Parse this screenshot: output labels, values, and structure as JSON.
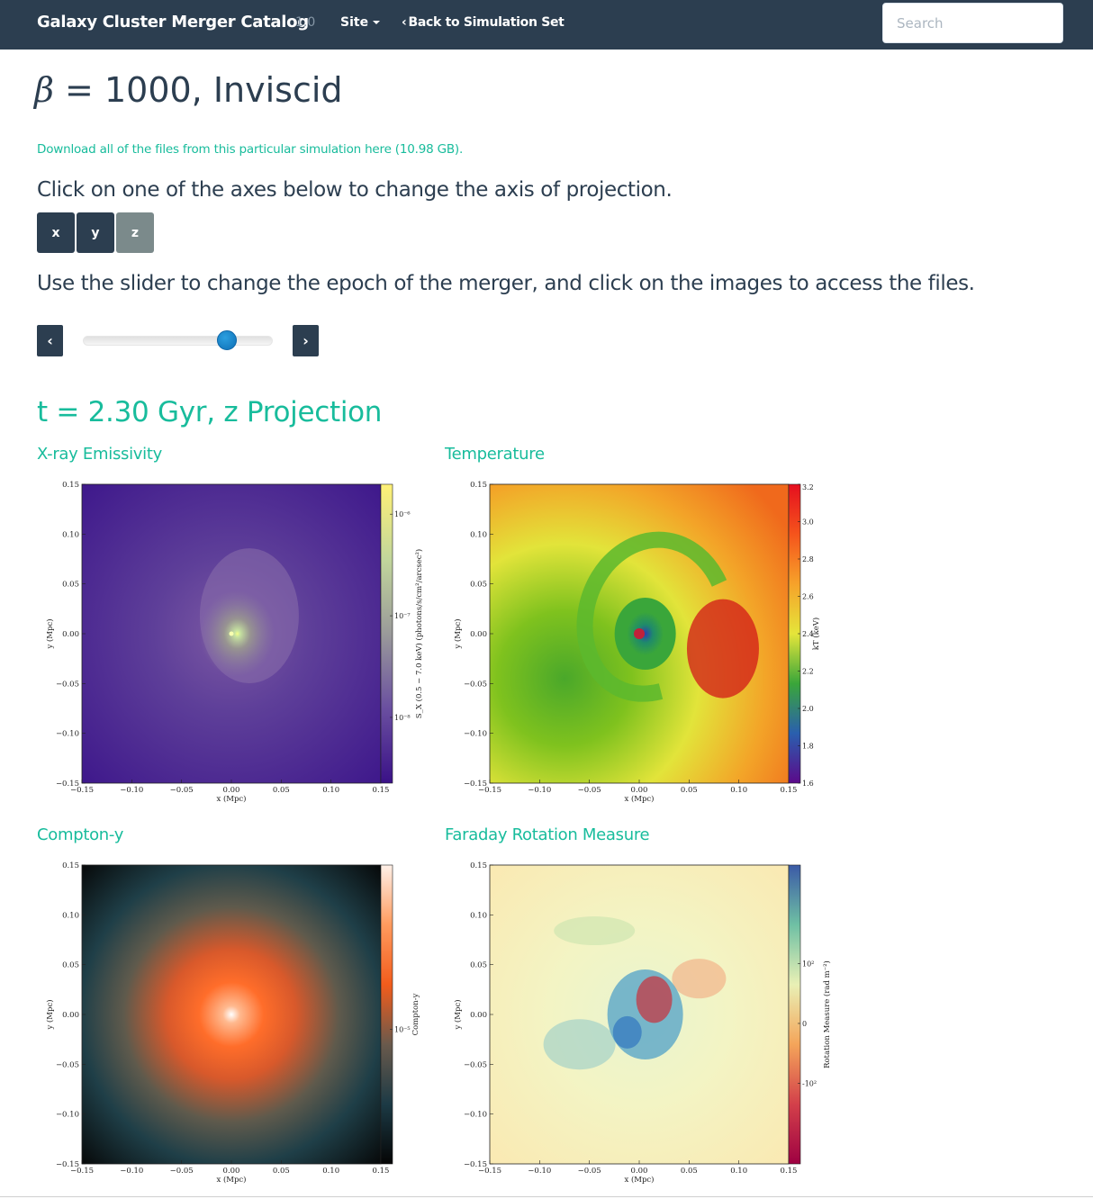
{
  "navbar": {
    "brand": "Galaxy Cluster Merger Catalog",
    "version": "1.0",
    "site_menu": "Site",
    "back_link": "Back to Simulation Set",
    "search_placeholder": "Search"
  },
  "page": {
    "title_symbol": "β",
    "title_rest": " = 1000, Inviscid",
    "download_text": "Download all of the files from this particular simulation here (10.98 GB).",
    "axis_instruction": "Click on one of the axes below to change the axis of projection.",
    "axis_buttons": [
      "x",
      "y",
      "z"
    ],
    "active_axis": "z",
    "slider_instruction": "Use the slider to change the epoch of the merger, and click on the images to access the files.",
    "prev_label": "‹",
    "next_label": "›",
    "slider_fraction": 0.79,
    "epoch_title": "t = 2.30 Gyr, z Projection"
  },
  "panels": [
    {
      "title": "X-ray Emissivity",
      "colorbar_label": "S_X (0.5 − 7.0 keV) (photons/s/cm²/arcsec²)",
      "colorbar_ticks": [
        "10⁻⁶",
        "10⁻⁷",
        "10⁻⁸"
      ]
    },
    {
      "title": "Temperature",
      "colorbar_label": "kT (keV)",
      "colorbar_ticks": [
        "3.2",
        "3.0",
        "2.8",
        "2.6",
        "2.4",
        "2.2",
        "2.0",
        "1.8",
        "1.6"
      ]
    },
    {
      "title": "Compton-y",
      "colorbar_label": "Compton-y",
      "colorbar_ticks": [
        "10⁻⁵"
      ]
    },
    {
      "title": "Faraday Rotation Measure",
      "colorbar_label": "Rotation Measure (rad m⁻²)",
      "colorbar_ticks": [
        "10²",
        "0",
        "-10²"
      ]
    }
  ],
  "axes": {
    "x_ticks": [
      "−0.15",
      "−0.10",
      "−0.05",
      "0.00",
      "0.05",
      "0.10",
      "0.15"
    ],
    "y_ticks": [
      "0.15",
      "0.10",
      "0.05",
      "0.00",
      "−0.05",
      "−0.10",
      "−0.15"
    ],
    "xlabel": "x (Mpc)",
    "ylabel": "y (Mpc)"
  }
}
